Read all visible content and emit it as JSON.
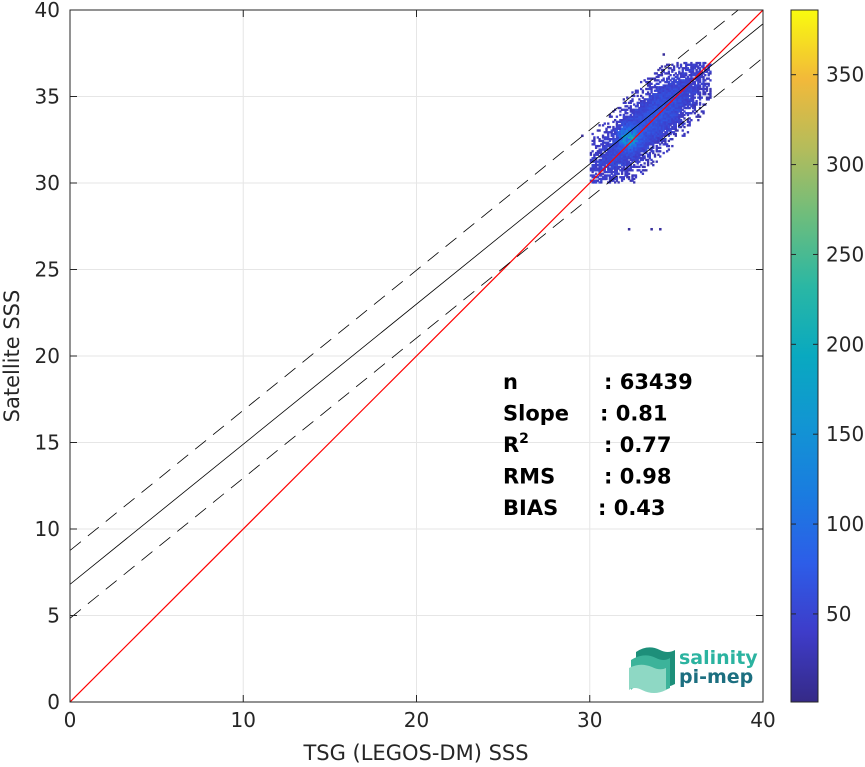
{
  "chart_data": {
    "type": "heatmap",
    "xlabel": "TSG (LEGOS-DM) SSS",
    "ylabel": "Satellite SSS",
    "xlim": [
      0,
      40
    ],
    "ylim": [
      0,
      40
    ],
    "xticks": [
      0,
      10,
      20,
      30,
      40
    ],
    "yticks": [
      0,
      5,
      10,
      15,
      20,
      25,
      30,
      35,
      40
    ],
    "grid": true,
    "colorbar": {
      "range": [
        1,
        386
      ],
      "ticks": [
        50,
        100,
        150,
        200,
        250,
        300,
        350
      ],
      "colormap": "parula"
    },
    "reference_line": {
      "name": "1:1",
      "slope": 1,
      "intercept": 0,
      "color": "#ff0000"
    },
    "fit_line": {
      "slope": 0.81,
      "intercept": 6.8,
      "color": "#000000"
    },
    "fit_bounds": [
      {
        "slope": 0.81,
        "intercept": 8.76
      },
      {
        "slope": 0.81,
        "intercept": 4.84
      }
    ],
    "density_cluster": {
      "x_range": [
        30,
        37
      ],
      "y_range": [
        30,
        37
      ],
      "peak": [
        32.2,
        32.6
      ],
      "peak_count": 386
    },
    "outliers": [
      [
        32.2,
        27.3
      ],
      [
        33.5,
        27.3
      ],
      [
        34.0,
        27.3
      ],
      [
        29.5,
        32.7
      ],
      [
        34.2,
        37.4
      ]
    ],
    "stats": [
      {
        "label": "n",
        "value": ": 63439"
      },
      {
        "label": "Slope",
        "value": ": 0.81"
      },
      {
        "label": "R",
        "sup": "2",
        "value": ": 0.77"
      },
      {
        "label": "RMS",
        "value": ": 0.98"
      },
      {
        "label": "BIAS",
        "value": ": 0.43"
      }
    ]
  },
  "logo": {
    "line1": "salinity",
    "line2": "pi-mep"
  }
}
